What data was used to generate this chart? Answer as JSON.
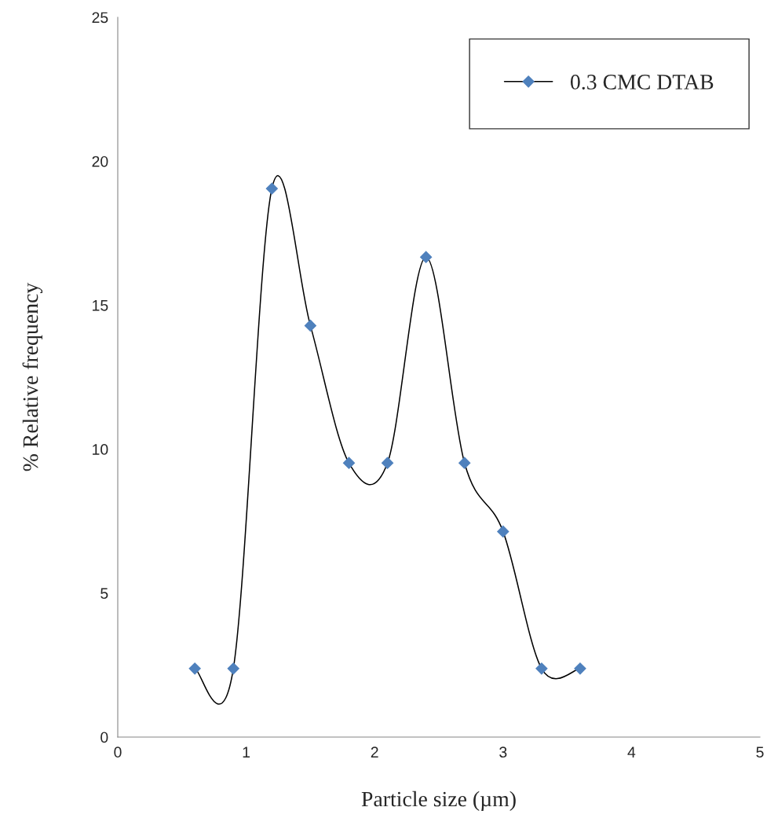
{
  "chart_data": {
    "type": "line",
    "xlabel": "Particle size (µm)",
    "ylabel": "% Relative frequency",
    "x": [
      0.6,
      0.9,
      1.2,
      1.5,
      1.8,
      2.1,
      2.4,
      2.7,
      3.0,
      3.3,
      3.6
    ],
    "series": [
      {
        "name": "0.3 CMC DTAB",
        "color": "#4f81bd",
        "values": [
          2.38,
          2.38,
          19.05,
          14.29,
          9.52,
          9.52,
          16.67,
          9.52,
          7.14,
          2.38,
          2.38
        ]
      }
    ],
    "xlim": [
      0,
      5
    ],
    "xticks": [
      0,
      1,
      2,
      3,
      4,
      5
    ],
    "ylim": [
      0,
      25
    ],
    "yticks": [
      0,
      5,
      10,
      15,
      20,
      25
    ],
    "marker": "diamond",
    "line_style": "solid",
    "grid": false,
    "legend": "top right"
  }
}
